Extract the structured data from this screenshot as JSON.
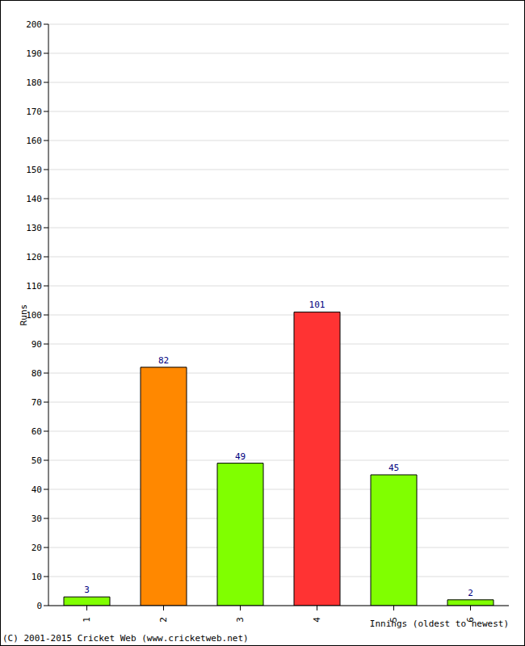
{
  "chart_data": {
    "type": "bar",
    "categories": [
      "1",
      "2",
      "3",
      "4",
      "5",
      "6"
    ],
    "values": [
      3,
      82,
      49,
      101,
      45,
      2
    ],
    "colors": [
      "#80ff00",
      "#ff8800",
      "#80ff00",
      "#ff3333",
      "#80ff00",
      "#80ff00"
    ],
    "ylim": [
      0,
      200
    ],
    "yticks": [
      0,
      10,
      20,
      30,
      40,
      50,
      60,
      70,
      80,
      90,
      100,
      110,
      120,
      130,
      140,
      150,
      160,
      170,
      180,
      190,
      200
    ],
    "grid": true,
    "data_labels": true,
    "x_label": "Innings (oldest to newest)",
    "y_label": "Runs",
    "annotations": [
      "(C) 2001-2015 Cricket Web (www.cricketweb.net)"
    ]
  }
}
